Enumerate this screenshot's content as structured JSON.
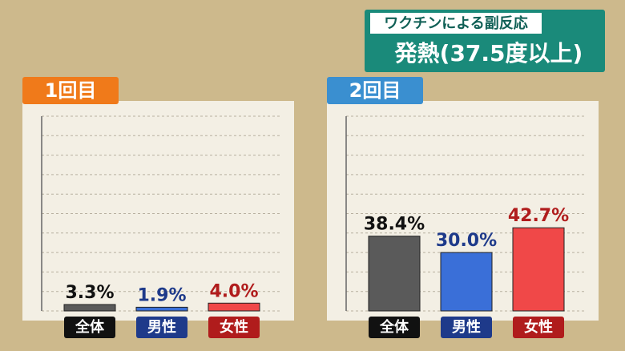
{
  "header": {
    "tag": "ワクチンによる副反応",
    "title": "発熱(37.5度以上)"
  },
  "chart_data": [
    {
      "type": "bar",
      "title": "1回目",
      "title_color": "#f07a1a",
      "categories": [
        "全体",
        "男性",
        "女性"
      ],
      "values": [
        3.3,
        1.9,
        4.0
      ],
      "value_labels": [
        "3.3%",
        "1.9%",
        "4.0%"
      ],
      "colors": [
        "#5a5a5a",
        "#3a6fd8",
        "#f04848"
      ],
      "label_colors": [
        "#111111",
        "#1e3a8a",
        "#b01c1c"
      ],
      "value_label_colors": [
        "#111111",
        "#1e3a8a",
        "#b01c1c"
      ],
      "ylim": [
        0,
        100
      ],
      "yticks": [
        0,
        10,
        20,
        30,
        40,
        50,
        60,
        70,
        80,
        90,
        100
      ],
      "grid": true
    },
    {
      "type": "bar",
      "title": "2回目",
      "title_color": "#3a8fd0",
      "categories": [
        "全体",
        "男性",
        "女性"
      ],
      "values": [
        38.4,
        30.0,
        42.7
      ],
      "value_labels": [
        "38.4%",
        "30.0%",
        "42.7%"
      ],
      "colors": [
        "#5a5a5a",
        "#3a6fd8",
        "#f04848"
      ],
      "label_colors": [
        "#111111",
        "#1e3a8a",
        "#b01c1c"
      ],
      "value_label_colors": [
        "#111111",
        "#1e3a8a",
        "#b01c1c"
      ],
      "ylim": [
        0,
        100
      ],
      "yticks": [
        0,
        10,
        20,
        30,
        40,
        50,
        60,
        70,
        80,
        90,
        100
      ],
      "grid": true
    }
  ]
}
